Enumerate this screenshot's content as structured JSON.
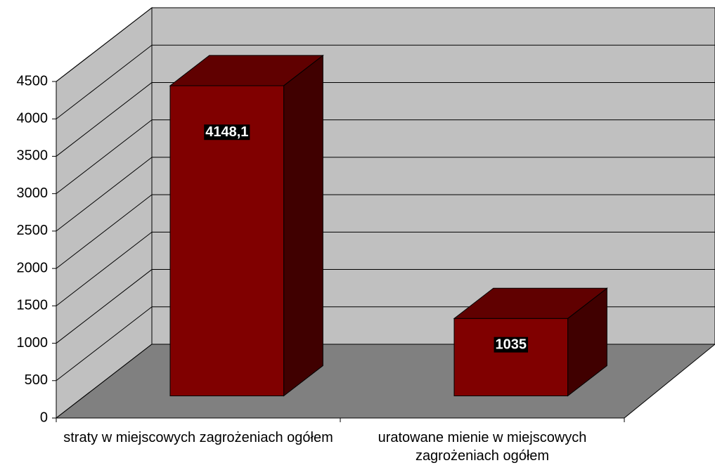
{
  "chart_data": {
    "type": "bar3d",
    "categories": [
      "straty w miejscowych zagrożeniach ogółem",
      "uratowane mienie w miejscowych zagrożeniach ogółem"
    ],
    "values": [
      4148.1,
      1035
    ],
    "value_labels": [
      "4148,1",
      "1035"
    ],
    "color": "#800000",
    "ylim": [
      0,
      4500
    ],
    "yticks": [
      0,
      500,
      1000,
      1500,
      2000,
      2500,
      3000,
      3500,
      4000,
      4500
    ],
    "grid": true
  }
}
